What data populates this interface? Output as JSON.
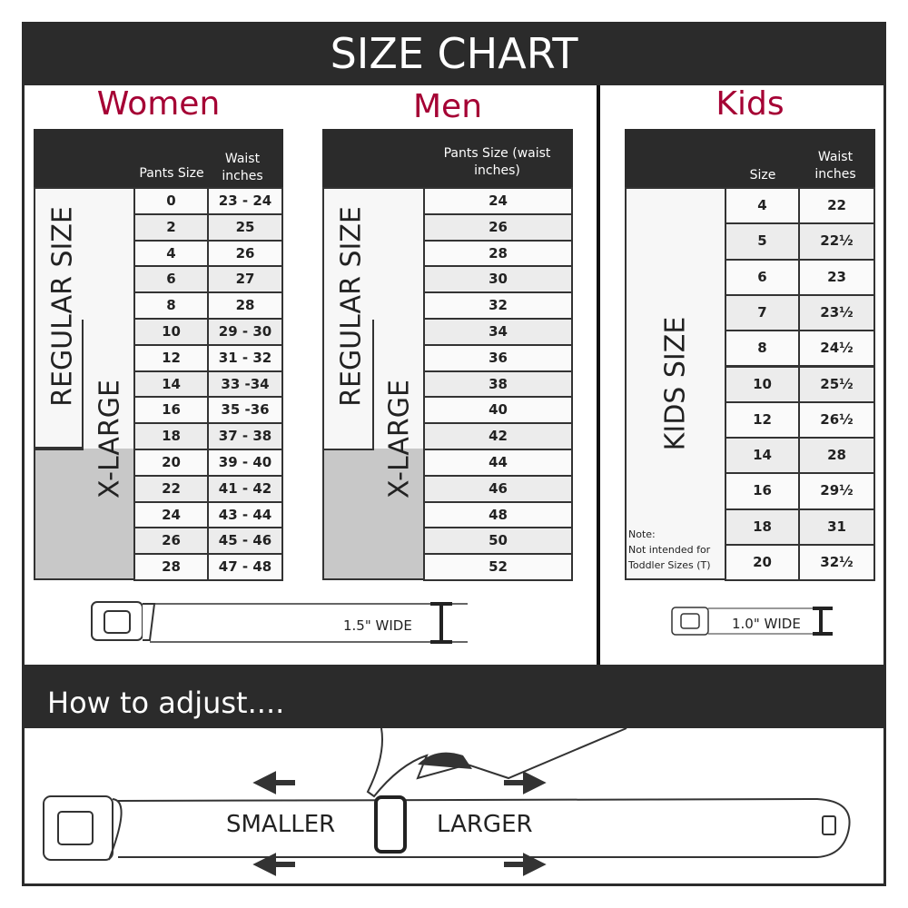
{
  "title": "SIZE CHART",
  "women": {
    "heading": "Women",
    "col1": "Pants Size",
    "col2": "Waist inches",
    "regular_label": "REGULAR SIZE",
    "xlarge_label": "X-LARGE",
    "rows": [
      [
        "0",
        "23 - 24"
      ],
      [
        "2",
        "25"
      ],
      [
        "4",
        "26"
      ],
      [
        "6",
        "27"
      ],
      [
        "8",
        "28"
      ],
      [
        "10",
        "29 - 30"
      ],
      [
        "12",
        "31 - 32"
      ],
      [
        "14",
        "33 -34"
      ],
      [
        "16",
        "35 -36"
      ],
      [
        "18",
        "37 - 38"
      ],
      [
        "20",
        "39 - 40"
      ],
      [
        "22",
        "41 - 42"
      ],
      [
        "24",
        "43 - 44"
      ],
      [
        "26",
        "45 - 46"
      ],
      [
        "28",
        "47 - 48"
      ]
    ]
  },
  "men": {
    "heading": "Men",
    "col1": "Pants Size (waist inches)",
    "regular_label": "REGULAR SIZE",
    "xlarge_label": "X-LARGE",
    "rows": [
      "24",
      "26",
      "28",
      "30",
      "32",
      "34",
      "36",
      "38",
      "40",
      "42",
      "44",
      "46",
      "48",
      "50",
      "52"
    ]
  },
  "kids": {
    "heading": "Kids",
    "col1": "Size",
    "col2": "Waist inches",
    "label": "KIDS SIZE",
    "note": "Note:",
    "note_text": "Not intended for Toddler Sizes (T)",
    "rows": [
      [
        "4",
        "22"
      ],
      [
        "5",
        "22½"
      ],
      [
        "6",
        "23"
      ],
      [
        "7",
        "23½"
      ],
      [
        "8",
        "24½"
      ],
      [
        "10",
        "25½"
      ],
      [
        "12",
        "26½"
      ],
      [
        "14",
        "28"
      ],
      [
        "16",
        "29½"
      ],
      [
        "18",
        "31"
      ],
      [
        "20",
        "32½"
      ]
    ]
  },
  "adult_width": "1.5\" WIDE",
  "kids_width": "1.0\" WIDE",
  "adjust": {
    "heading": "How to adjust....",
    "smaller": "SMALLER",
    "larger": "LARGER"
  }
}
